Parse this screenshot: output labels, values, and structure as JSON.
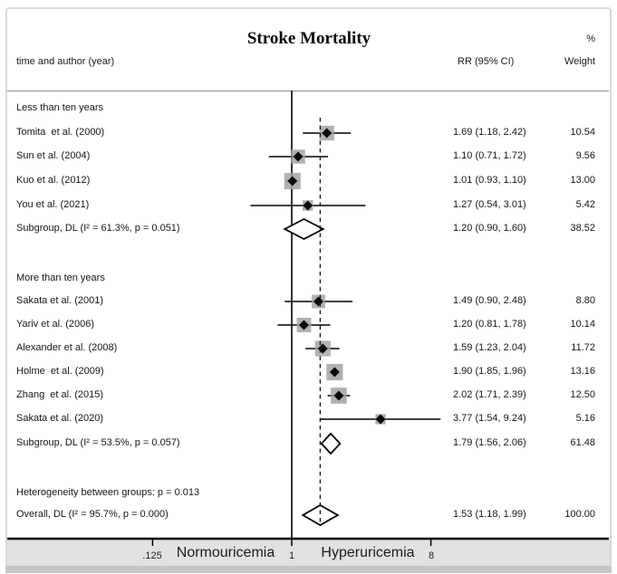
{
  "colors": {
    "text": "#161616",
    "line": "#000000",
    "weight_box": "#a3a3a3",
    "panel": "#ffffff",
    "frame": "#d9d9d9",
    "axis_band": "#e2e2e2",
    "bottom_strip": "#c6c6c6",
    "divider": "#8f8f8f"
  },
  "header": {
    "title": "Stroke Mortality",
    "left_column": "time and author (year)",
    "rr_column": "RR (95% CI)",
    "weight_unit": "%",
    "weight_column": "Weight"
  },
  "chart_data": {
    "type": "forest",
    "title": "Stroke Mortality",
    "effect_measure": "RR",
    "x_axis": {
      "scale": "log",
      "ticks": [
        ".125",
        "1",
        "8"
      ],
      "tick_values": [
        0.125,
        1,
        8
      ],
      "left_region_label": "Normouricemia",
      "right_region_label": "Hyperuricemia",
      "null_line_value": 1,
      "overall_dashed_line_value": 1.53
    },
    "groups": [
      {
        "label": "Less than ten years",
        "studies": [
          {
            "label": "Tomita  et al. (2000)",
            "rr": 1.69,
            "lo": 1.18,
            "hi": 2.42,
            "weight": 10.54,
            "rr_text": "1.69 (1.18, 2.42)",
            "weight_text": "10.54"
          },
          {
            "label": "Sun et al. (2004)",
            "rr": 1.1,
            "lo": 0.71,
            "hi": 1.72,
            "weight": 9.56,
            "rr_text": "1.10 (0.71, 1.72)",
            "weight_text": "9.56"
          },
          {
            "label": "Kuo et al. (2012)",
            "rr": 1.01,
            "lo": 0.93,
            "hi": 1.1,
            "weight": 13.0,
            "rr_text": "1.01 (0.93, 1.10)",
            "weight_text": "13.00"
          },
          {
            "label": "You et al. (2021)",
            "rr": 1.27,
            "lo": 0.54,
            "hi": 3.01,
            "weight": 5.42,
            "rr_text": "1.27 (0.54, 3.01)",
            "weight_text": "5.42"
          }
        ],
        "subgroup": {
          "label": "Subgroup, DL (I² = 61.3%, p = 0.051)",
          "rr": 1.2,
          "lo": 0.9,
          "hi": 1.6,
          "rr_text": "1.20 (0.90, 1.60)",
          "weight_text": "38.52"
        }
      },
      {
        "label": "More than ten years",
        "studies": [
          {
            "label": "Sakata et al. (2001)",
            "rr": 1.49,
            "lo": 0.9,
            "hi": 2.48,
            "weight": 8.8,
            "rr_text": "1.49 (0.90, 2.48)",
            "weight_text": "8.80"
          },
          {
            "label": "Yariv et al. (2006)",
            "rr": 1.2,
            "lo": 0.81,
            "hi": 1.78,
            "weight": 10.14,
            "rr_text": "1.20 (0.81, 1.78)",
            "weight_text": "10.14"
          },
          {
            "label": "Alexander et al. (2008)",
            "rr": 1.59,
            "lo": 1.23,
            "hi": 2.04,
            "weight": 11.72,
            "rr_text": "1.59 (1.23, 2.04)",
            "weight_text": "11.72"
          },
          {
            "label": "Holme  et al. (2009)",
            "rr": 1.9,
            "lo": 1.85,
            "hi": 1.96,
            "weight": 13.16,
            "rr_text": "1.90 (1.85, 1.96)",
            "weight_text": "13.16"
          },
          {
            "label": "Zhang  et al. (2015)",
            "rr": 2.02,
            "lo": 1.71,
            "hi": 2.39,
            "weight": 12.5,
            "rr_text": "2.02 (1.71, 2.39)",
            "weight_text": "12.50"
          },
          {
            "label": "Sakata et al. (2020)",
            "rr": 3.77,
            "lo": 1.54,
            "hi": 9.24,
            "weight": 5.16,
            "rr_text": "3.77 (1.54, 9.24)",
            "weight_text": "5.16"
          }
        ],
        "subgroup": {
          "label": "Subgroup, DL (I² = 53.5%, p = 0.057)",
          "rr": 1.79,
          "lo": 1.56,
          "hi": 2.06,
          "rr_text": "1.79 (1.56, 2.06)",
          "weight_text": "61.48"
        }
      }
    ],
    "heterogeneity_note": "Heterogeneity between groups: p = 0.013",
    "overall": {
      "label": "Overall, DL (I² = 95.7%, p = 0.000)",
      "rr": 1.53,
      "lo": 1.18,
      "hi": 1.99,
      "rr_text": "1.53 (1.18, 1.99)",
      "weight_text": "100.00"
    }
  }
}
